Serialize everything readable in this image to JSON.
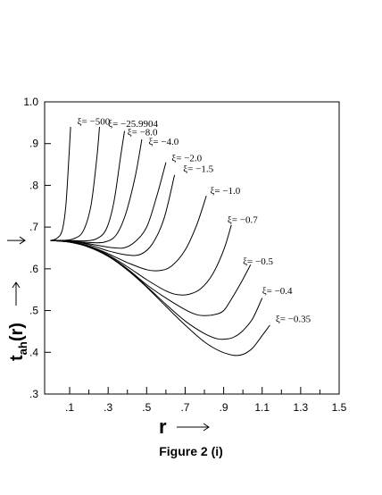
{
  "caption": "Figure 2 (i)",
  "chart_data": {
    "type": "line",
    "x_axis": {
      "label": "r",
      "range": [
        -0.03,
        1.5
      ],
      "tick_values": [
        0.1,
        0.3,
        0.5,
        0.7,
        0.9,
        1.1,
        1.3,
        1.5
      ],
      "tick_labels": [
        ".1",
        ".3",
        ".5",
        ".7",
        ".9",
        "1.1",
        "1.3",
        "1.5"
      ],
      "minor_ticks": [
        0.2,
        0.4,
        0.6,
        0.8,
        1.0,
        1.2,
        1.4
      ]
    },
    "y_axis": {
      "label_main": "t",
      "label_sub": "ah",
      "label_tail": "(r)",
      "range": [
        0.3,
        1.0
      ],
      "tick_values": [
        0.3,
        0.4,
        0.5,
        0.6,
        0.7,
        0.8,
        0.9,
        1.0
      ],
      "tick_labels": [
        ".3",
        ".4",
        ".5",
        ".6",
        ".7",
        ".8",
        ".9",
        "1.0"
      ]
    },
    "start_marker_y": 0.668,
    "series": [
      {
        "name": "ξ= −500",
        "points": [
          [
            0.0,
            0.668
          ],
          [
            0.03,
            0.672
          ],
          [
            0.06,
            0.69
          ],
          [
            0.08,
            0.75
          ],
          [
            0.095,
            0.86
          ],
          [
            0.105,
            0.94
          ]
        ]
      },
      {
        "name": "ξ= −25.9904",
        "points": [
          [
            0.0,
            0.668
          ],
          [
            0.06,
            0.668
          ],
          [
            0.12,
            0.672
          ],
          [
            0.17,
            0.69
          ],
          [
            0.21,
            0.75
          ],
          [
            0.24,
            0.86
          ],
          [
            0.255,
            0.94
          ]
        ]
      },
      {
        "name": "ξ= −8.0",
        "points": [
          [
            0.0,
            0.668
          ],
          [
            0.1,
            0.668
          ],
          [
            0.18,
            0.667
          ],
          [
            0.24,
            0.672
          ],
          [
            0.29,
            0.695
          ],
          [
            0.33,
            0.76
          ],
          [
            0.365,
            0.87
          ],
          [
            0.385,
            0.93
          ]
        ]
      },
      {
        "name": "ξ= −4.0",
        "points": [
          [
            0.0,
            0.668
          ],
          [
            0.1,
            0.667
          ],
          [
            0.2,
            0.663
          ],
          [
            0.28,
            0.664
          ],
          [
            0.34,
            0.68
          ],
          [
            0.39,
            0.73
          ],
          [
            0.44,
            0.82
          ],
          [
            0.475,
            0.91
          ]
        ]
      },
      {
        "name": "ξ= −2.0",
        "points": [
          [
            0.0,
            0.668
          ],
          [
            0.1,
            0.667
          ],
          [
            0.2,
            0.66
          ],
          [
            0.3,
            0.652
          ],
          [
            0.38,
            0.65
          ],
          [
            0.44,
            0.665
          ],
          [
            0.5,
            0.7
          ],
          [
            0.55,
            0.77
          ],
          [
            0.6,
            0.855
          ]
        ]
      },
      {
        "name": "ξ= −1.5",
        "points": [
          [
            0.0,
            0.668
          ],
          [
            0.1,
            0.667
          ],
          [
            0.2,
            0.658
          ],
          [
            0.3,
            0.643
          ],
          [
            0.4,
            0.633
          ],
          [
            0.47,
            0.635
          ],
          [
            0.53,
            0.66
          ],
          [
            0.59,
            0.72
          ],
          [
            0.645,
            0.825
          ]
        ]
      },
      {
        "name": "ξ= −1.0",
        "points": [
          [
            0.0,
            0.668
          ],
          [
            0.1,
            0.665
          ],
          [
            0.2,
            0.655
          ],
          [
            0.3,
            0.636
          ],
          [
            0.4,
            0.615
          ],
          [
            0.5,
            0.598
          ],
          [
            0.57,
            0.596
          ],
          [
            0.63,
            0.607
          ],
          [
            0.7,
            0.645
          ],
          [
            0.76,
            0.705
          ],
          [
            0.81,
            0.775
          ]
        ]
      },
      {
        "name": "ξ= −0.7",
        "points": [
          [
            0.0,
            0.668
          ],
          [
            0.1,
            0.665
          ],
          [
            0.2,
            0.654
          ],
          [
            0.3,
            0.633
          ],
          [
            0.4,
            0.605
          ],
          [
            0.5,
            0.574
          ],
          [
            0.6,
            0.547
          ],
          [
            0.66,
            0.538
          ],
          [
            0.72,
            0.539
          ],
          [
            0.78,
            0.552
          ],
          [
            0.84,
            0.585
          ],
          [
            0.9,
            0.645
          ],
          [
            0.94,
            0.705
          ]
        ]
      },
      {
        "name": "ξ= −0.5",
        "points": [
          [
            0.0,
            0.668
          ],
          [
            0.1,
            0.664
          ],
          [
            0.2,
            0.653
          ],
          [
            0.3,
            0.631
          ],
          [
            0.4,
            0.6
          ],
          [
            0.5,
            0.562
          ],
          [
            0.6,
            0.53
          ],
          [
            0.7,
            0.502
          ],
          [
            0.76,
            0.49
          ],
          [
            0.8,
            0.488
          ],
          [
            0.85,
            0.49
          ],
          [
            0.9,
            0.5
          ],
          [
            0.95,
            0.535
          ],
          [
            1.0,
            0.575
          ],
          [
            1.04,
            0.61
          ]
        ]
      },
      {
        "name": "ξ= −0.4",
        "points": [
          [
            0.0,
            0.668
          ],
          [
            0.1,
            0.664
          ],
          [
            0.2,
            0.652
          ],
          [
            0.3,
            0.63
          ],
          [
            0.4,
            0.598
          ],
          [
            0.5,
            0.558
          ],
          [
            0.6,
            0.515
          ],
          [
            0.7,
            0.475
          ],
          [
            0.8,
            0.445
          ],
          [
            0.87,
            0.432
          ],
          [
            0.92,
            0.432
          ],
          [
            0.96,
            0.438
          ],
          [
            1.0,
            0.452
          ],
          [
            1.05,
            0.48
          ],
          [
            1.1,
            0.53
          ]
        ]
      },
      {
        "name": "ξ= −0.35",
        "points": [
          [
            0.0,
            0.668
          ],
          [
            0.1,
            0.664
          ],
          [
            0.2,
            0.652
          ],
          [
            0.3,
            0.63
          ],
          [
            0.4,
            0.597
          ],
          [
            0.5,
            0.556
          ],
          [
            0.6,
            0.51
          ],
          [
            0.7,
            0.465
          ],
          [
            0.8,
            0.425
          ],
          [
            0.88,
            0.403
          ],
          [
            0.95,
            0.393
          ],
          [
            1.0,
            0.395
          ],
          [
            1.05,
            0.41
          ],
          [
            1.1,
            0.44
          ],
          [
            1.14,
            0.465
          ]
        ]
      }
    ],
    "series_label_anchors": [
      {
        "x": 0.14,
        "y": 0.945
      },
      {
        "x": 0.3,
        "y": 0.94
      },
      {
        "x": 0.4,
        "y": 0.92
      },
      {
        "x": 0.51,
        "y": 0.897
      },
      {
        "x": 0.63,
        "y": 0.858
      },
      {
        "x": 0.69,
        "y": 0.832
      },
      {
        "x": 0.83,
        "y": 0.78
      },
      {
        "x": 0.92,
        "y": 0.71
      },
      {
        "x": 1.0,
        "y": 0.61
      },
      {
        "x": 1.1,
        "y": 0.54
      },
      {
        "x": 1.17,
        "y": 0.472
      }
    ]
  }
}
